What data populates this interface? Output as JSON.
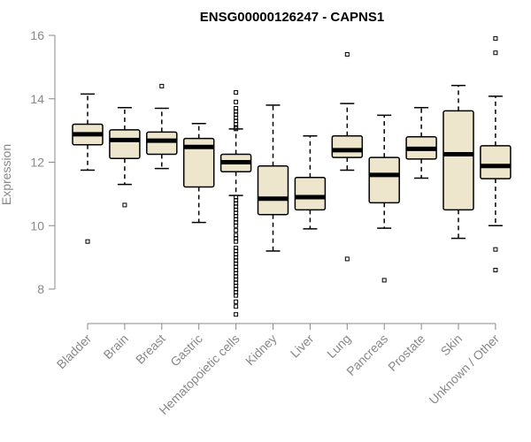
{
  "chart_data": {
    "type": "boxplot",
    "title": "ENSG00000126247 - CAPNS1",
    "xlabel": "",
    "ylabel": "Expression",
    "ylim": [
      7,
      16.2
    ],
    "yticks": [
      8,
      10,
      12,
      14,
      16
    ],
    "ytick_labels": [
      "8",
      "10",
      "12",
      "14",
      "16"
    ],
    "categories": [
      "Bladder",
      "Brain",
      "Breast",
      "Gastric",
      "Hematopoietic cells",
      "Kidney",
      "Liver",
      "Lung",
      "Pancreas",
      "Prostate",
      "Skin",
      "Unknown / Other"
    ],
    "colors": {
      "box_fill": "#ede6cd",
      "stroke": "#000000",
      "axis": "#888888"
    },
    "boxes": [
      {
        "name": "Bladder",
        "whislo": 11.75,
        "q1": 12.55,
        "med": 12.88,
        "q3": 13.2,
        "whishi": 14.15,
        "fliers": [
          9.5
        ]
      },
      {
        "name": "Brain",
        "whislo": 11.3,
        "q1": 12.12,
        "med": 12.7,
        "q3": 13.02,
        "whishi": 13.72,
        "fliers": [
          10.65
        ]
      },
      {
        "name": "Breast",
        "whislo": 11.8,
        "q1": 12.25,
        "med": 12.68,
        "q3": 12.95,
        "whishi": 13.7,
        "fliers": [
          14.4
        ]
      },
      {
        "name": "Gastric",
        "whislo": 10.1,
        "q1": 11.22,
        "med": 12.48,
        "q3": 12.75,
        "whishi": 13.22,
        "fliers": []
      },
      {
        "name": "Hematopoietic cells",
        "whislo": 10.95,
        "q1": 11.7,
        "med": 12.0,
        "q3": 12.25,
        "whishi": 13.05,
        "fliers": [
          14.2,
          13.9,
          13.7,
          13.6,
          13.5,
          13.4,
          13.3,
          13.2,
          13.1,
          13.05,
          10.9,
          10.8,
          10.7,
          10.6,
          10.5,
          10.4,
          10.3,
          10.2,
          10.1,
          10.0,
          9.85,
          9.7,
          9.6,
          9.5,
          9.3,
          9.2,
          9.1,
          9.0,
          8.9,
          8.8,
          8.7,
          8.6,
          8.5,
          8.4,
          8.3,
          8.2,
          8.1,
          8.0,
          7.9,
          7.8,
          7.6,
          7.45,
          7.2
        ]
      },
      {
        "name": "Kidney",
        "whislo": 9.2,
        "q1": 10.35,
        "med": 10.85,
        "q3": 11.88,
        "whishi": 13.8,
        "fliers": []
      },
      {
        "name": "Liver",
        "whislo": 9.9,
        "q1": 10.5,
        "med": 10.9,
        "q3": 11.52,
        "whishi": 12.83,
        "fliers": []
      },
      {
        "name": "Lung",
        "whislo": 11.75,
        "q1": 12.15,
        "med": 12.38,
        "q3": 12.83,
        "whishi": 13.85,
        "fliers": [
          15.4,
          8.95
        ]
      },
      {
        "name": "Pancreas",
        "whislo": 9.92,
        "q1": 10.72,
        "med": 11.6,
        "q3": 12.15,
        "whishi": 13.48,
        "fliers": [
          8.28
        ]
      },
      {
        "name": "Prostate",
        "whislo": 11.5,
        "q1": 12.1,
        "med": 12.42,
        "q3": 12.8,
        "whishi": 13.72,
        "fliers": []
      },
      {
        "name": "Skin",
        "whislo": 9.6,
        "q1": 10.5,
        "med": 12.25,
        "q3": 13.62,
        "whishi": 14.42,
        "fliers": []
      },
      {
        "name": "Unknown / Other",
        "whislo": 10.0,
        "q1": 11.48,
        "med": 11.88,
        "q3": 12.52,
        "whishi": 14.08,
        "fliers": [
          15.9,
          15.45,
          9.25,
          8.6
        ]
      }
    ]
  }
}
